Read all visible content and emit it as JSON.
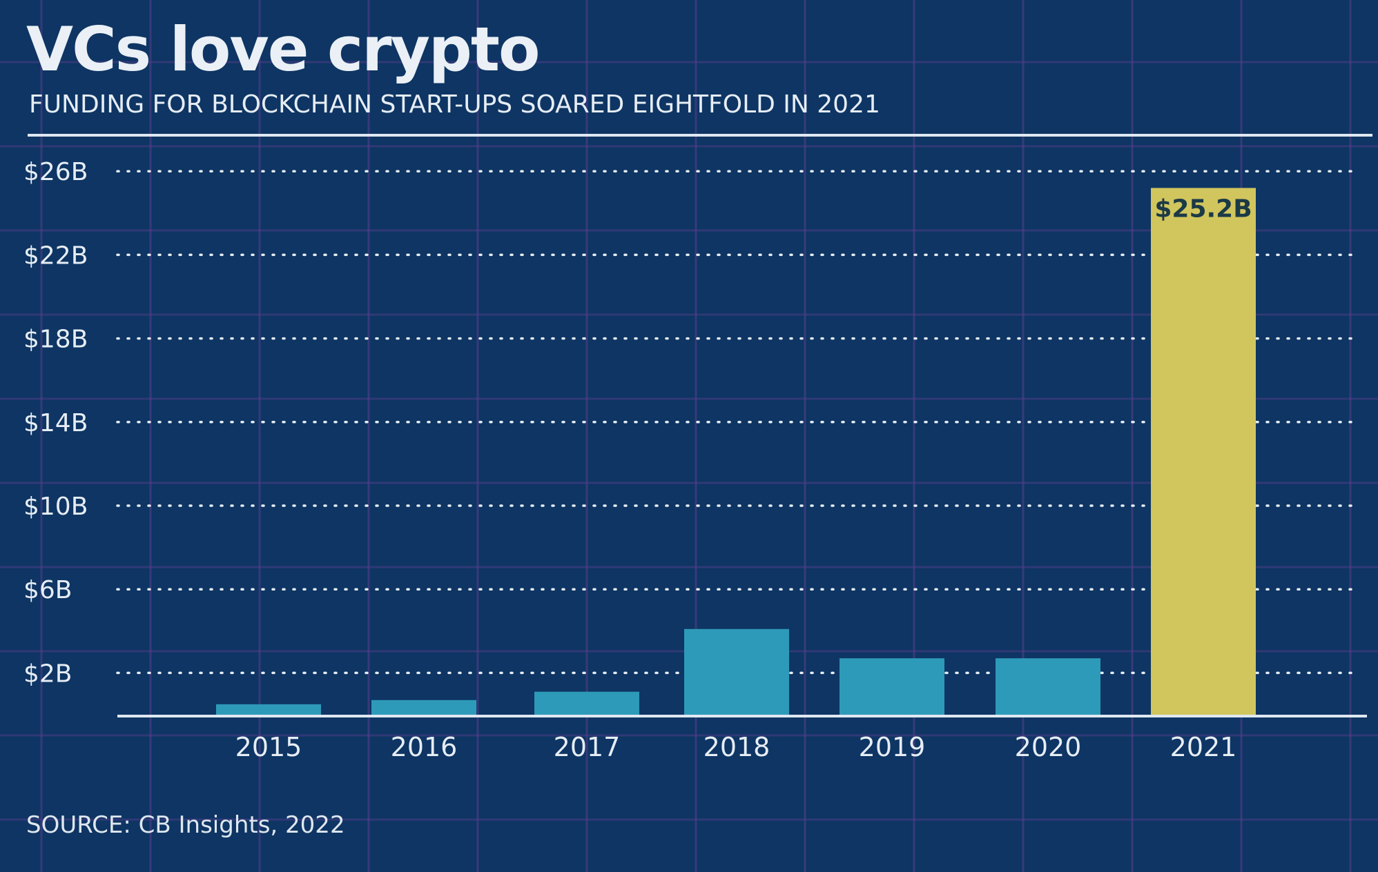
{
  "header": {
    "title": "VCs love crypto",
    "subtitle": "FUNDING FOR BLOCKCHAIN START-UPS SOARED EIGHTFOLD IN 2021"
  },
  "footer": {
    "source": "SOURCE: CB Insights, 2022"
  },
  "colors": {
    "background": "#0e3563",
    "bar": "#2e9ab9",
    "highlight_bar": "#d1c55d",
    "highlight_label": "#1b3a46",
    "text": "#e6edf5"
  },
  "chart_data": {
    "type": "bar",
    "categories": [
      "2015",
      "2016",
      "2017",
      "2018",
      "2019",
      "2020",
      "2021"
    ],
    "values": [
      0.5,
      0.7,
      1.1,
      4.1,
      2.7,
      2.7,
      25.2
    ],
    "highlight_index": 6,
    "data_labels": [
      "",
      "",
      "",
      "",
      "",
      "",
      "$25.2B"
    ],
    "yticks": [
      2,
      6,
      10,
      14,
      18,
      22,
      26
    ],
    "ytick_labels": [
      "$2B",
      "$6B",
      "$10B",
      "$14B",
      "$18B",
      "$22B",
      "$26B"
    ],
    "ylim": [
      0,
      26
    ],
    "grid": true,
    "title": "VCs love crypto",
    "subtitle": "FUNDING FOR BLOCKCHAIN START-UPS SOARED EIGHTFOLD IN 2021",
    "xlabel": "",
    "ylabel": ""
  }
}
